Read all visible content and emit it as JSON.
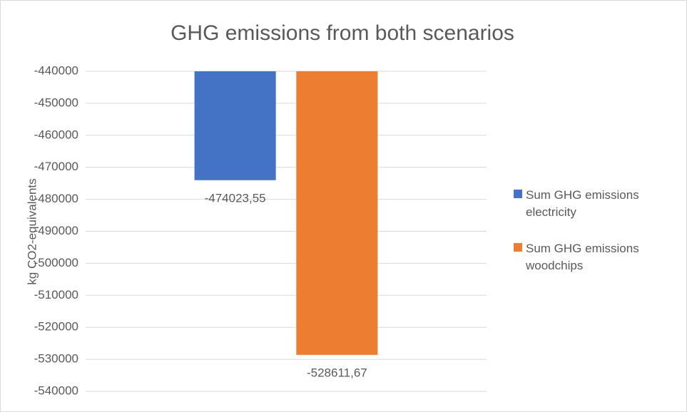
{
  "chart_data": {
    "type": "bar",
    "title": "GHG emissions from both scenarios",
    "y_label": "kg CO2-equivalents",
    "categories": [
      null
    ],
    "series": [
      {
        "name": "Sum GHG emissions electricity",
        "color": "#4472c4",
        "values": [
          -474023.55
        ],
        "value_labels": [
          "-474023,55"
        ]
      },
      {
        "name": "Sum GHG emissions woodchips",
        "color": "#ed7d31",
        "values": [
          -528611.67
        ],
        "value_labels": [
          "-528611,67"
        ]
      }
    ],
    "ylim": [
      -540000,
      -440000
    ],
    "yticks": [
      -540000,
      -530000,
      -520000,
      -510000,
      -500000,
      -490000,
      -480000,
      -470000,
      -460000,
      -450000,
      -440000
    ],
    "grid": true,
    "legend": "right"
  }
}
